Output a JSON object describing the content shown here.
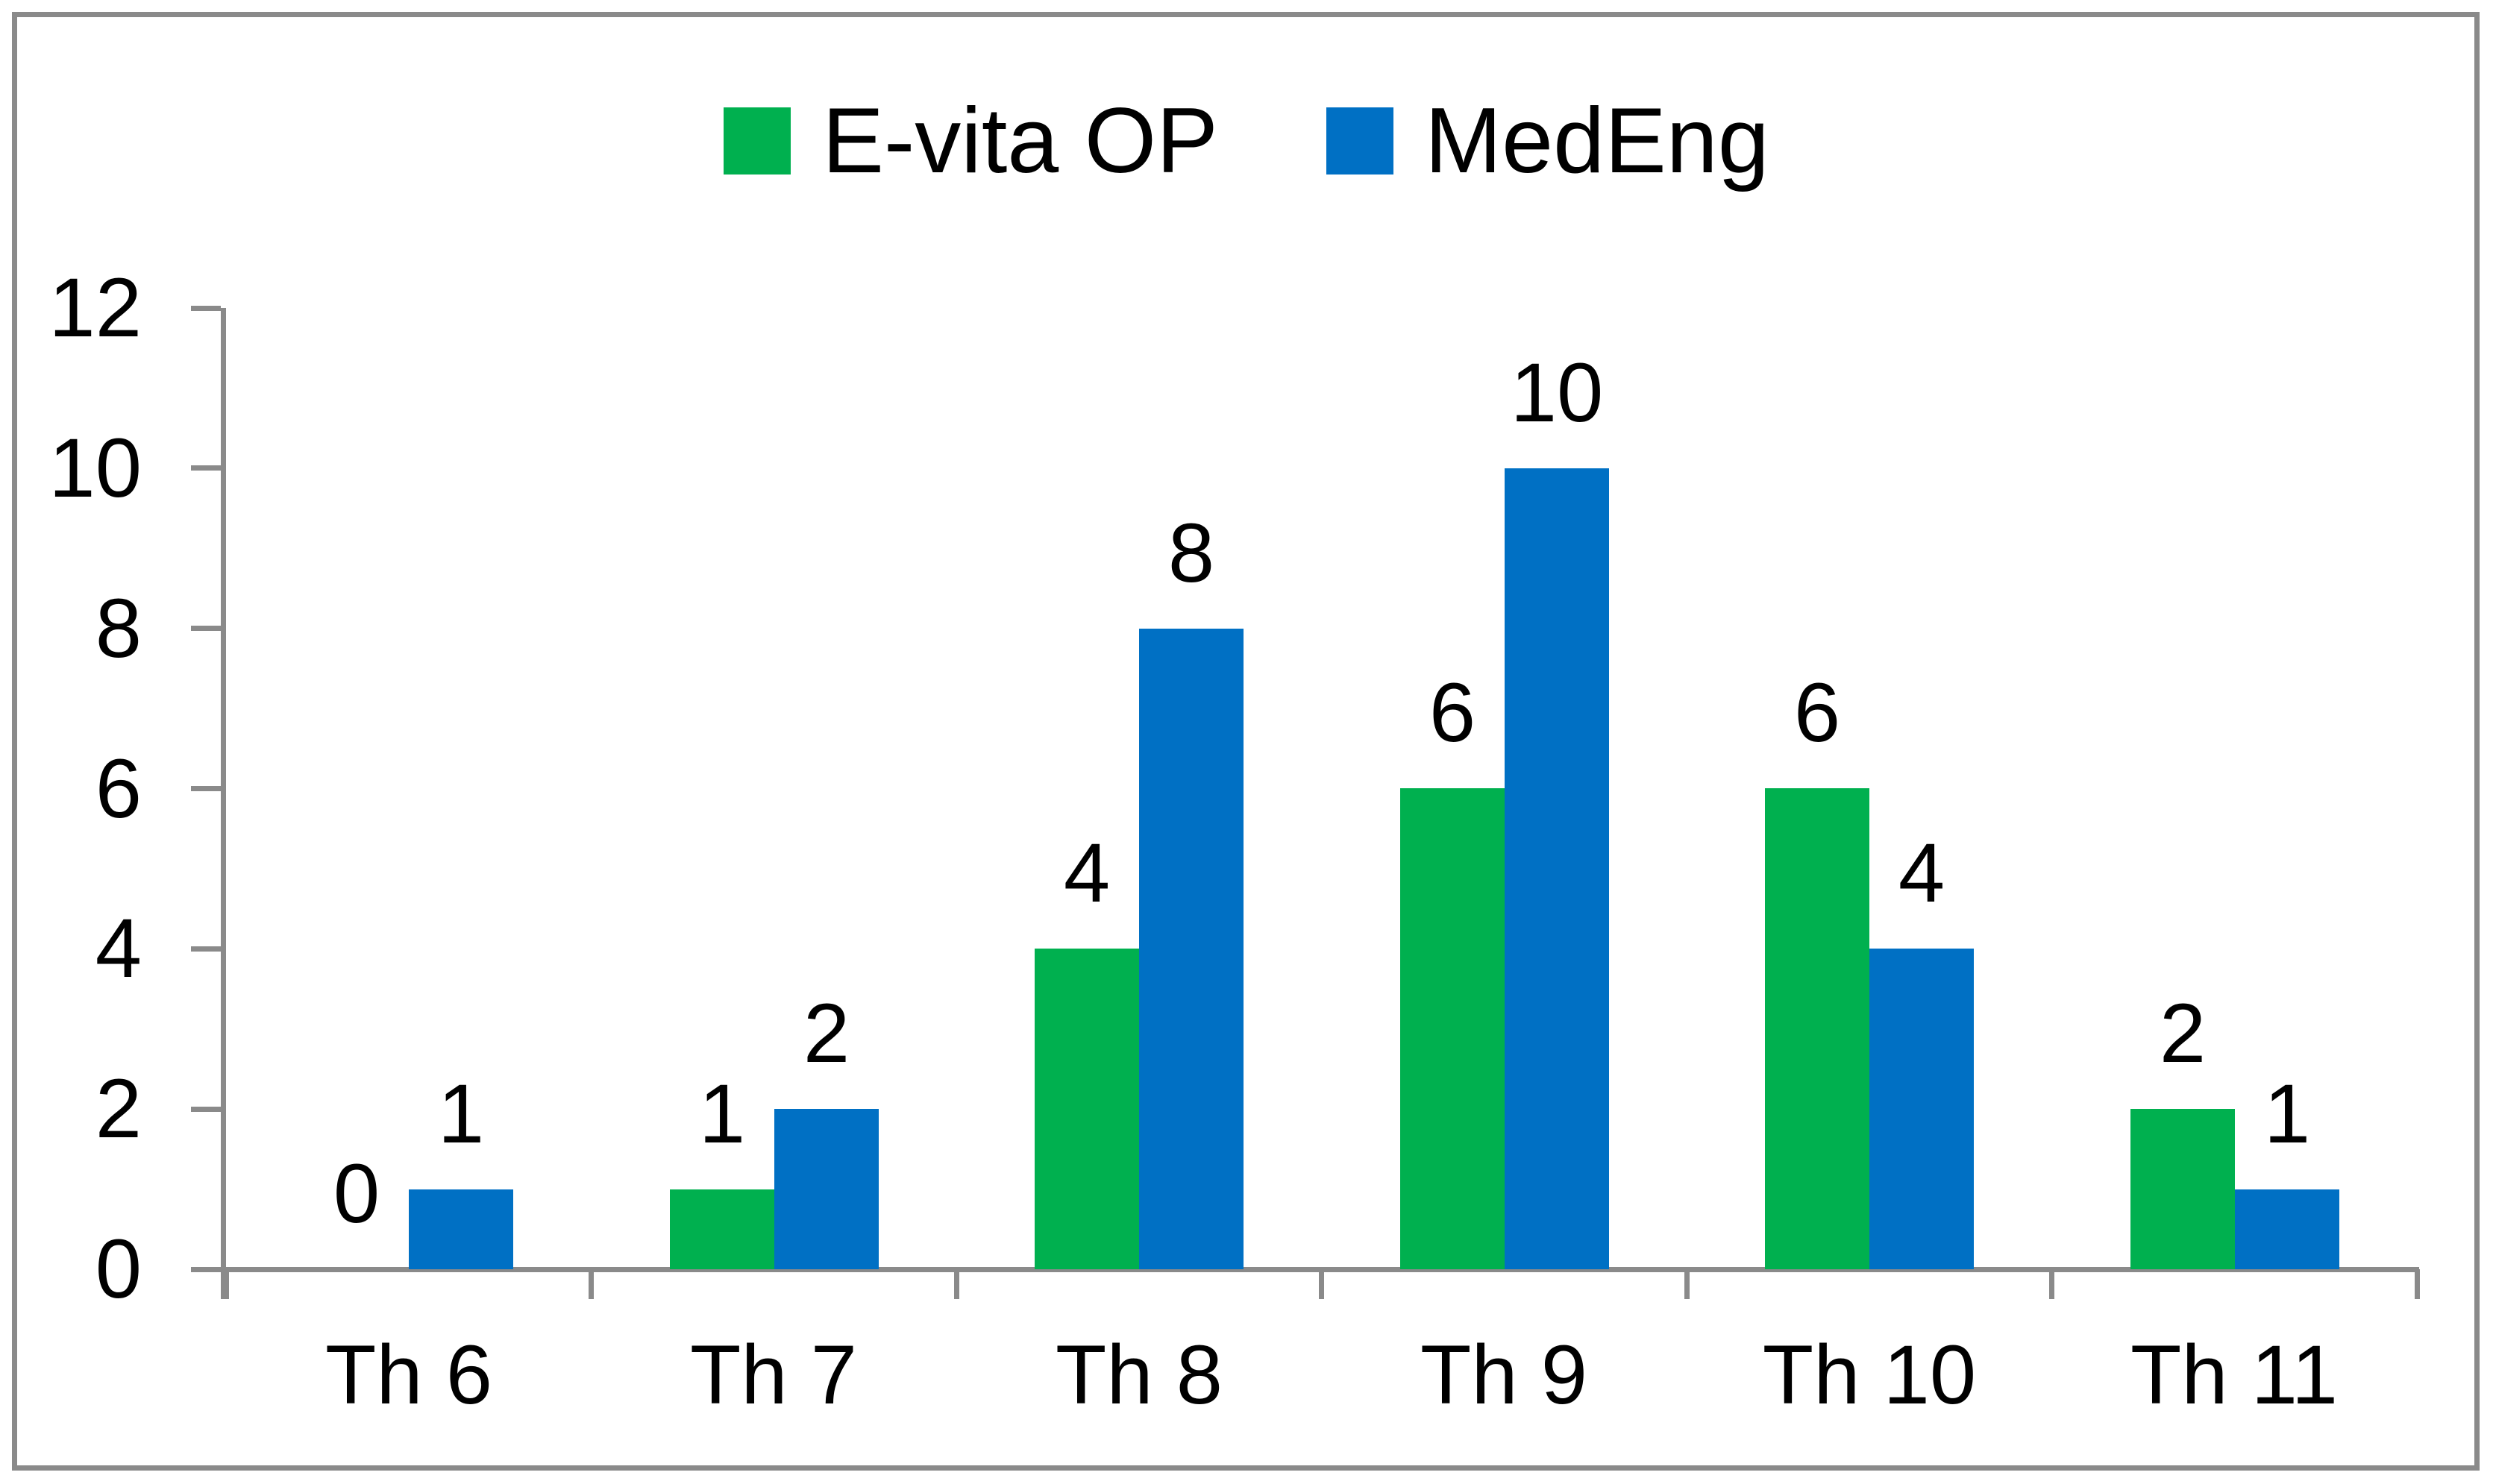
{
  "figure": {
    "background": "#FFFFFF",
    "border_color": "#8A8A8A"
  },
  "chart_data": {
    "type": "bar",
    "title": "",
    "xlabel": "",
    "ylabel": "",
    "categories": [
      "Th 6",
      "Th 7",
      "Th 8",
      "Th 9",
      "Th 10",
      "Th 11"
    ],
    "series": [
      {
        "name": "E-vita OP",
        "color": "#00B04F",
        "values": [
          0,
          1,
          4,
          6,
          6,
          2
        ]
      },
      {
        "name": "MedEng",
        "color": "#0070C4",
        "values": [
          1,
          2,
          8,
          10,
          4,
          1
        ]
      }
    ],
    "data_labels": true,
    "y_ticks": [
      0,
      2,
      4,
      6,
      8,
      10,
      12
    ],
    "ylim": [
      0,
      12
    ],
    "legend_position": "top",
    "grid": false,
    "axis_color": "#8A8A8A",
    "text_color": "#000000"
  }
}
